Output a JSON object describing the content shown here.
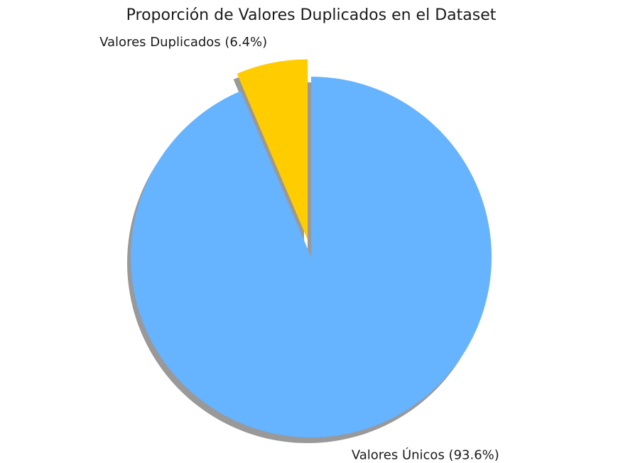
{
  "chart_data": {
    "type": "pie",
    "title": "Proporción de Valores Duplicados en el Dataset",
    "slices": [
      {
        "name": "Valores Duplicados",
        "value": 6.4,
        "color": "#ffcc00",
        "exploded": true,
        "label": "Valores Duplicados (6.4%)"
      },
      {
        "name": "Valores Únicos",
        "value": 93.6,
        "color": "#66b3ff",
        "exploded": false,
        "label": "Valores Únicos (93.6%)"
      }
    ],
    "shadow": true
  }
}
